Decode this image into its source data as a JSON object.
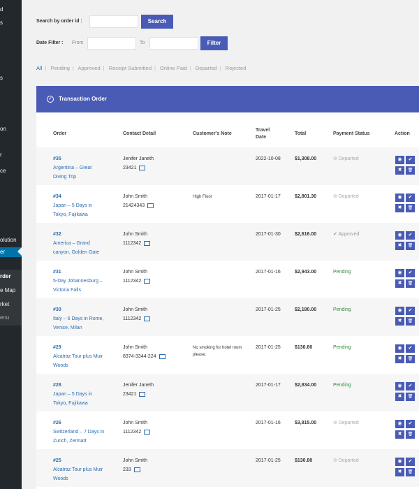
{
  "sidebar": {
    "items": [
      "d",
      "s",
      "s",
      "on",
      "r",
      "ce",
      "olution",
      "er",
      "rder",
      "e Map",
      "rket",
      "enu"
    ]
  },
  "search": {
    "label": "Search by order id :",
    "placeholder": "",
    "button": "Search"
  },
  "date_filter": {
    "label": "Date Filter :",
    "from": "From",
    "to": "To",
    "button": "Filter"
  },
  "status_filters": [
    "All",
    "Pending",
    "Approved",
    "Receipt Submitted",
    "Online Paid",
    "Departed",
    "Rejected"
  ],
  "panel": {
    "title": "Transaction Order",
    "check_icon": "✓"
  },
  "columns": [
    "Order",
    "Contact Detail",
    "Customer's Note",
    "Travel Date",
    "Total",
    "Payment Status",
    "Action"
  ],
  "rows": [
    {
      "order_id": "#35",
      "tour": "Argentina – Great Diving Trip",
      "name": "Jenifer Janeth",
      "phone": "23421",
      "note": "",
      "date": "2022-10-08",
      "total": "$1,308.00",
      "status": "Departed",
      "status_icon": "⊘"
    },
    {
      "order_id": "#34",
      "tour": "Japan – 5 Days in Tokyo, Fujikawa",
      "name": "John Smith",
      "phone": "21424343",
      "note": "High Floor",
      "date": "2017-01-17",
      "total": "$2,801.30",
      "status": "Departed",
      "status_icon": "⊘"
    },
    {
      "order_id": "#32",
      "tour": "America – Grand canyon, Golden Gate",
      "name": "John Smith",
      "phone": "1112342",
      "note": "",
      "date": "2017-01-30",
      "total": "$2,616.00",
      "status": "Approved",
      "status_icon": "✔"
    },
    {
      "order_id": "#31",
      "tour": "5-Day Johannesburg – Victoria Falls",
      "name": "John Smith",
      "phone": "1112342",
      "note": "",
      "date": "2017-01-16",
      "total": "$2,943.00",
      "status": "Pending",
      "status_icon": ""
    },
    {
      "order_id": "#30",
      "tour": "Italy – 6 Days in Rome, Venice, Milan",
      "name": "John Smith",
      "phone": "1112342",
      "note": "",
      "date": "2017-01-25",
      "total": "$2,180.00",
      "status": "Pending",
      "status_icon": ""
    },
    {
      "order_id": "#29",
      "tour": "Alcatraz Tour plus Muir Woods",
      "name": "John Smith",
      "phone": "8374-3344-224",
      "note": "No smoking for hotel room please.",
      "date": "2017-01-25",
      "total": "$130.80",
      "status": "Pending",
      "status_icon": ""
    },
    {
      "order_id": "#28",
      "tour": "Japan – 5 Days in Tokyo, Fujikawa",
      "name": "Jenifer Janeth",
      "phone": "23421",
      "note": "",
      "date": "2017-01-17",
      "total": "$2,834.00",
      "status": "Pending",
      "status_icon": ""
    },
    {
      "order_id": "#26",
      "tour": "Switzerland – 7 Days in Zurich, Zermatt",
      "name": "John Smith",
      "phone": "1112342",
      "note": "",
      "date": "2017-01-16",
      "total": "$3,815.00",
      "status": "Departed",
      "status_icon": "⊘"
    },
    {
      "order_id": "#25",
      "tour": "Alcatraz Tour plus Muir Woods",
      "name": "John Smith",
      "phone": "233",
      "note": "",
      "date": "2017-01-25",
      "total": "$130.80",
      "status": "Departed",
      "status_icon": "⊘"
    }
  ],
  "action_icons": {
    "view": "◉",
    "approve": "✔",
    "reject": "✖",
    "delete": "🗑"
  },
  "colors": {
    "primary": "#4a5bb5",
    "link": "#2b6cb0",
    "pending": "#2e8b3a",
    "sidebar": "#23282d"
  }
}
